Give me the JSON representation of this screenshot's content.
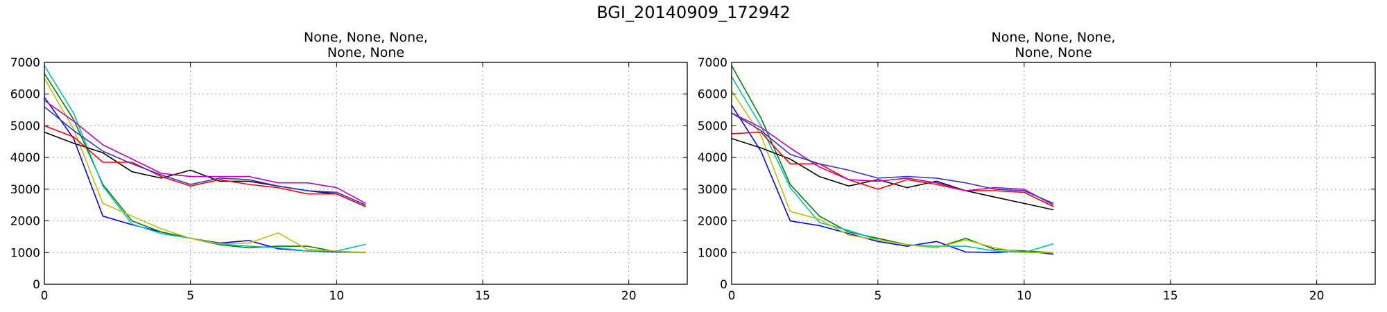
{
  "suptitle": "BGI_20140909_172942",
  "chart_data": [
    {
      "type": "line",
      "title_lines": [
        "None, None, None,",
        "None, None"
      ],
      "xlim": [
        0,
        22
      ],
      "ylim": [
        0,
        7000
      ],
      "xticks": [
        0,
        5,
        10,
        15,
        20
      ],
      "yticks": [
        0,
        1000,
        2000,
        3000,
        4000,
        5000,
        6000,
        7000
      ],
      "grid": true,
      "x": [
        0,
        1,
        2,
        3,
        4,
        5,
        6,
        7,
        8,
        9,
        10,
        11
      ],
      "series": [
        {
          "color": "#0000ff",
          "values": [
            5900,
            4600,
            2150,
            1880,
            1650,
            1450,
            1300,
            1380,
            1120,
            1050,
            1020,
            1010
          ]
        },
        {
          "color": "#007f00",
          "values": [
            6650,
            5200,
            3150,
            2000,
            1650,
            1450,
            1250,
            1150,
            1200,
            1200,
            1030,
            1000
          ]
        },
        {
          "color": "#00bfbf",
          "values": [
            6900,
            5400,
            3100,
            1900,
            1600,
            1450,
            1270,
            1200,
            1150,
            1050,
            1050,
            1260
          ]
        },
        {
          "color": "#bfbf00",
          "values": [
            6500,
            4900,
            2550,
            2150,
            1750,
            1450,
            1280,
            1300,
            1620,
            1100,
            1050,
            1000
          ]
        },
        {
          "color": "#000000",
          "values": [
            4800,
            4450,
            4150,
            3550,
            3350,
            3600,
            3250,
            3250,
            3100,
            2950,
            2850,
            2450
          ]
        },
        {
          "color": "#ff0000",
          "values": [
            5000,
            4650,
            3850,
            3850,
            3400,
            3100,
            3300,
            3150,
            3050,
            2850,
            2850,
            2450
          ]
        },
        {
          "color": "#bf00bf",
          "values": [
            5800,
            5150,
            4400,
            3950,
            3500,
            3400,
            3400,
            3400,
            3200,
            3200,
            3050,
            2550
          ]
        },
        {
          "color": "#3333cc",
          "values": [
            5600,
            4850,
            4200,
            3800,
            3450,
            3150,
            3350,
            3300,
            3100,
            2950,
            2900,
            2500
          ]
        }
      ]
    },
    {
      "type": "line",
      "title_lines": [
        "None, None, None,",
        "None, None"
      ],
      "xlim": [
        0,
        22
      ],
      "ylim": [
        0,
        7000
      ],
      "xticks": [
        0,
        5,
        10,
        15,
        20
      ],
      "yticks": [
        0,
        1000,
        2000,
        3000,
        4000,
        5000,
        6000,
        7000
      ],
      "grid": true,
      "x": [
        0,
        1,
        2,
        3,
        4,
        5,
        6,
        7,
        8,
        9,
        10,
        11
      ],
      "series": [
        {
          "color": "#0000ff",
          "values": [
            5650,
            4200,
            2000,
            1850,
            1600,
            1350,
            1200,
            1350,
            1020,
            1000,
            1050,
            950
          ]
        },
        {
          "color": "#007f00",
          "values": [
            6900,
            5250,
            3150,
            2150,
            1650,
            1450,
            1250,
            1150,
            1450,
            1100,
            1050,
            1000
          ]
        },
        {
          "color": "#00bfbf",
          "values": [
            6550,
            5000,
            3050,
            1950,
            1700,
            1400,
            1250,
            1200,
            1200,
            1050,
            1000,
            1280
          ]
        },
        {
          "color": "#bfbf00",
          "values": [
            6100,
            4700,
            2300,
            2050,
            1550,
            1400,
            1250,
            1150,
            1400,
            1150,
            1000,
            1000
          ]
        },
        {
          "color": "#000000",
          "values": [
            4600,
            4300,
            3950,
            3400,
            3100,
            3300,
            3050,
            3250,
            2950,
            2750,
            2550,
            2350
          ]
        },
        {
          "color": "#ff0000",
          "values": [
            4750,
            4800,
            3800,
            3800,
            3300,
            3000,
            3300,
            3150,
            2950,
            2950,
            2900,
            2450
          ]
        },
        {
          "color": "#bf00bf",
          "values": [
            5400,
            4950,
            4300,
            3700,
            3300,
            3250,
            3350,
            3200,
            2950,
            3050,
            3000,
            2500
          ]
        },
        {
          "color": "#3333cc",
          "values": [
            5400,
            4850,
            4100,
            3800,
            3600,
            3350,
            3400,
            3350,
            3200,
            3000,
            2950,
            2550
          ]
        }
      ]
    }
  ]
}
